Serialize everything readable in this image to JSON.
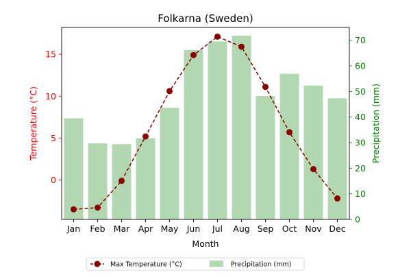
{
  "chart_data": {
    "type": "bar+line",
    "title": "Folkarna (Sweden)",
    "xlabel": "Month",
    "categories": [
      "Jan",
      "Feb",
      "Mar",
      "Apr",
      "May",
      "Jun",
      "Jul",
      "Aug",
      "Sep",
      "Oct",
      "Nov",
      "Dec"
    ],
    "temperature": {
      "name": "Max Temperature (°C)",
      "axis_label": "Temperature (°C)",
      "values": [
        -3.5,
        -3.3,
        -0.1,
        5.2,
        10.6,
        14.9,
        17.1,
        15.9,
        11.1,
        5.7,
        1.3,
        -2.2
      ],
      "ylim": [
        -4.7,
        18.2
      ],
      "ticks": [
        0,
        5,
        10,
        15
      ],
      "color": "#8b0000",
      "axis_color": "#ff0000"
    },
    "precipitation": {
      "name": "Precipitation (mm)",
      "axis_label": "Precipitation (mm)",
      "values": [
        39.5,
        29.7,
        29.4,
        31.7,
        43.6,
        66.2,
        69.5,
        71.8,
        48.2,
        56.9,
        52.3,
        47.3
      ],
      "ylim": [
        0,
        75
      ],
      "ticks": [
        0,
        10,
        20,
        30,
        40,
        50,
        60,
        70
      ],
      "color": "#b2d8b2",
      "axis_color": "#008000"
    },
    "legend": {
      "placement": "bottom-center",
      "entries": [
        "Max Temperature (°C)",
        "Precipitation (mm)"
      ]
    },
    "grid": false
  }
}
